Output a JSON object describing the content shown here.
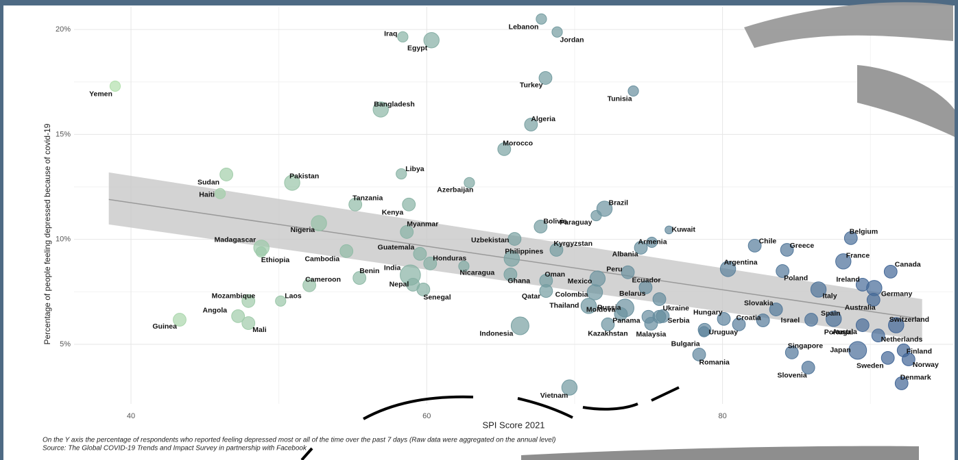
{
  "chart_data": {
    "type": "scatter",
    "x_label": "SPI Score 2021",
    "y_label": "Percentage of people feeling depressed because of covid-19",
    "footnote": "On the Y axis the percentage of respondents who reported feeling depressed most or all of the time over the past 7 days (Raw data were aggregated on the annual level)",
    "source": "Source: The Global COVID-19 Trends and Impact Survey in partnership with Facebook",
    "xlim": [
      36.15,
      95.6
    ],
    "ylim": [
      2.16,
      21.08
    ],
    "xticks": [
      40,
      60,
      80
    ],
    "x_minor_grid": [
      50,
      70,
      90
    ],
    "yticks": [
      {
        "value": 5,
        "label": "5%"
      },
      {
        "value": 10,
        "label": "10%"
      },
      {
        "value": 15,
        "label": "15%"
      },
      {
        "value": 20,
        "label": "20%"
      }
    ],
    "y_minor_grid": [
      7.5,
      12.5,
      17.5
    ],
    "grid": true,
    "color_scale": [
      "#b8e6ae",
      "#3a5d95"
    ],
    "labels": [
      "Yemen",
      "Iraq",
      "Egypt",
      "Lebanon",
      "Jordan",
      "Turkey",
      "Tunisia",
      "Bangladesh",
      "Algeria",
      "Morocco",
      "Libya",
      "Sudan",
      "Pakistan",
      "Azerbaijan",
      "Haiti",
      "Tanzania",
      "Kenya",
      "Brazil",
      "Paraguay",
      "Nigeria",
      "Bolivia",
      "Myanmar",
      "Uzbekistan",
      "Kuwait",
      "Armenia",
      "Albania",
      "Madagascar",
      "Ethiopia",
      "Chile",
      "Greece",
      "Belgium",
      "Kyrgyzstan",
      "Cambodia",
      "Guatemala",
      "Philippines",
      "Honduras",
      "France",
      "Argentina",
      "Nicaragua",
      "India",
      "Peru",
      "Canada",
      "Poland",
      "Benin",
      "Oman",
      "Ghana",
      "Ecuador",
      "Nepal",
      "Mexico",
      "Cameroon",
      "Senegal",
      "Ireland",
      "Germany",
      "Australia",
      "Italy",
      "Colombia",
      "Qatar",
      "Belarus",
      "Mozambique",
      "Laos",
      "Slovakia",
      "Thailand",
      "Russia",
      "Ukraine",
      "Angola",
      "Hungary",
      "Croatia",
      "Israel",
      "Spain",
      "Portugal",
      "Moldova",
      "Panama",
      "Serbia",
      "Switzerland",
      "Mali",
      "Guinea",
      "Austria",
      "Kazakhstan",
      "Malaysia",
      "Uruguay",
      "Bulgaria",
      "Netherlands",
      "Indonesia",
      "Singapore",
      "Japan",
      "Finland",
      "Sweden",
      "Norway",
      "Romania",
      "Slovenia",
      "Denmark",
      "Vietnam"
    ],
    "x": [
      38.93,
      58.38,
      60.32,
      67.75,
      68.82,
      68.03,
      73.97,
      56.89,
      67.05,
      65.24,
      58.28,
      46.45,
      50.9,
      62.88,
      46.03,
      55.17,
      58.79,
      72.02,
      71.46,
      52.71,
      67.7,
      58.65,
      65.94,
      76.38,
      75.22,
      74.48,
      48.82,
      48.8,
      82.18,
      84.36,
      88.68,
      68.77,
      54.57,
      59.54,
      65.75,
      60.23,
      88.17,
      80.37,
      62.51,
      58.89,
      73.6,
      91.37,
      84.06,
      55.45,
      68.07,
      65.66,
      74.8,
      59.07,
      71.55,
      52.06,
      59.77,
      89.47,
      90.26,
      90.21,
      86.49,
      71.37,
      68.07,
      75.73,
      47.94,
      50.12,
      83.62,
      70.95,
      73.41,
      75.96,
      47.24,
      80.09,
      81.11,
      82.74,
      86.0,
      87.52,
      73.13,
      74.99,
      75.73,
      91.74,
      47.94,
      43.29,
      89.47,
      72.25,
      75.17,
      78.79,
      78.75,
      90.53,
      66.31,
      84.69,
      89.14,
      92.25,
      91.18,
      92.58,
      78.42,
      85.8,
      92.11,
      69.65
    ],
    "values": [
      17.3,
      19.65,
      19.49,
      20.5,
      19.88,
      17.69,
      17.07,
      16.19,
      15.47,
      14.3,
      13.12,
      13.09,
      12.7,
      12.7,
      12.18,
      11.66,
      11.66,
      11.46,
      11.13,
      10.77,
      10.61,
      10.35,
      10.02,
      10.45,
      9.86,
      9.6,
      9.6,
      9.4,
      9.7,
      9.5,
      10.06,
      9.5,
      9.44,
      9.31,
      9.08,
      8.85,
      8.95,
      8.59,
      8.72,
      8.3,
      8.43,
      8.46,
      8.49,
      8.16,
      8.03,
      8.33,
      7.71,
      7.84,
      8.13,
      7.81,
      7.61,
      7.84,
      7.68,
      7.12,
      7.61,
      7.48,
      7.54,
      7.15,
      7.06,
      7.06,
      6.66,
      6.83,
      6.73,
      6.34,
      6.34,
      6.21,
      5.95,
      6.14,
      6.17,
      6.21,
      6.44,
      6.31,
      6.31,
      5.91,
      6.01,
      6.17,
      5.91,
      5.95,
      5.98,
      5.69,
      5.6,
      5.42,
      5.88,
      4.61,
      4.71,
      4.71,
      4.35,
      4.28,
      4.51,
      3.89,
      3.14,
      2.94
    ],
    "sizes": [
      2,
      2,
      4,
      2,
      2,
      3,
      2,
      4,
      3,
      3,
      2,
      3,
      4,
      2,
      2,
      3,
      3,
      4,
      2,
      4,
      3,
      3,
      3,
      1,
      2,
      3,
      4,
      2,
      3,
      3,
      3,
      3,
      3,
      3,
      4,
      3,
      4,
      4,
      2,
      6,
      3,
      3,
      3,
      3,
      3,
      3,
      3,
      3,
      4,
      3,
      3,
      3,
      4,
      3,
      4,
      4,
      3,
      3,
      3,
      2,
      3,
      4,
      5,
      3,
      3,
      3,
      3,
      3,
      3,
      4,
      3,
      3,
      3,
      4,
      3,
      3,
      3,
      3,
      3,
      3,
      2,
      3,
      5,
      3,
      5,
      3,
      3,
      3,
      3,
      3,
      3,
      4
    ],
    "trend": {
      "x": [
        38.5,
        93.5
      ],
      "values": [
        11.9,
        6.2
      ],
      "band_upper": [
        13.19,
        7.15
      ],
      "band_lower": [
        10.71,
        5.2
      ]
    }
  }
}
